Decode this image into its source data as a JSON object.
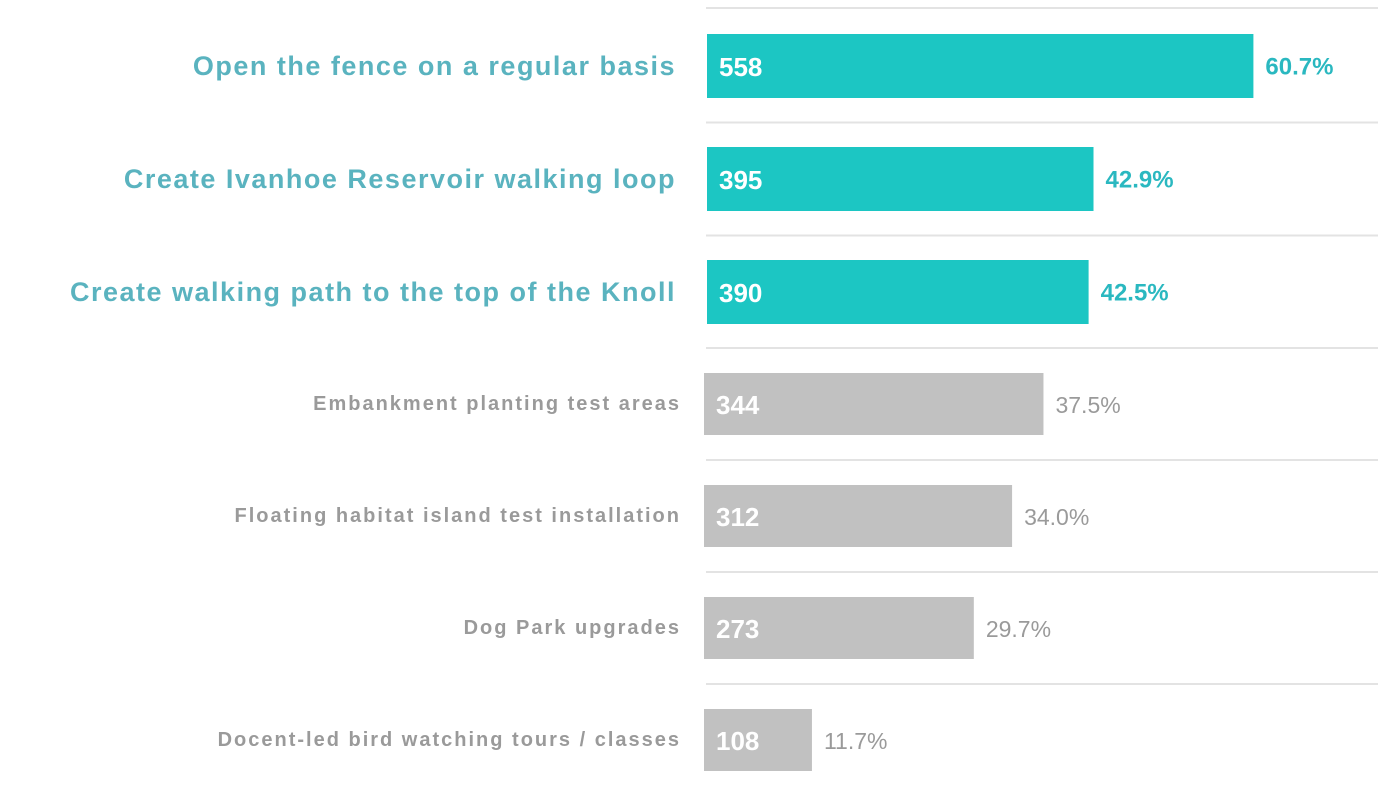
{
  "chart_data": {
    "type": "bar",
    "orientation": "horizontal",
    "categories": [
      "Open the fence on a regular basis",
      "Create Ivanhoe Reservoir walking loop",
      "Create walking path to the top of the Knoll",
      "Embankment planting test areas",
      "Floating habitat island test installation",
      "Dog Park upgrades",
      "Docent-led bird watching tours / classes"
    ],
    "values": [
      558,
      395,
      390,
      344,
      312,
      273,
      108
    ],
    "shares": [
      60.7,
      42.9,
      42.5,
      37.5,
      34.0,
      29.7,
      11.7
    ],
    "share_labels": [
      "60.7%",
      "42.9%",
      "42.5%",
      "37.5%",
      "34.0%",
      "29.7%",
      "11.7%"
    ],
    "highlighted": [
      true,
      true,
      true,
      false,
      false,
      false,
      false
    ],
    "colors": [
      "#1cc6c3",
      "#1cc6c3",
      "#1cc6c3",
      "#c1c1c1",
      "#c1c1c1",
      "#c1c1c1",
      "#c1c1c1"
    ],
    "xlim": [
      0,
      685
    ]
  }
}
